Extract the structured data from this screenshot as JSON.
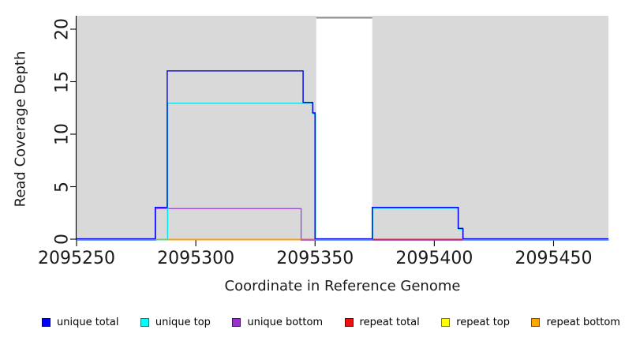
{
  "figure": {
    "background": "#ffffff",
    "plot_background": "#d9d9d9",
    "axis_color": "#000000",
    "gap_cap_color": "#8f8f8f"
  },
  "chart_data": {
    "type": "line",
    "title": "",
    "xlabel": "Coordinate in Reference Genome",
    "ylabel": "Read Coverage Depth",
    "xlim": [
      2095250,
      2095473
    ],
    "ylim": [
      0,
      21
    ],
    "grid": false,
    "legend_position": "bottom",
    "xticks": [
      {
        "value": 2095250,
        "label": "2095250"
      },
      {
        "value": 2095300,
        "label": "2095300"
      },
      {
        "value": 2095350,
        "label": "2095350"
      },
      {
        "value": 2095400,
        "label": "2095400"
      },
      {
        "value": 2095450,
        "label": "2095450"
      }
    ],
    "yticks": [
      {
        "value": 0,
        "label": "0"
      },
      {
        "value": 5,
        "label": "5"
      },
      {
        "value": 10,
        "label": "10"
      },
      {
        "value": 15,
        "label": "15"
      },
      {
        "value": 20,
        "label": "20"
      }
    ],
    "n_gap": {
      "from": 2095350.5,
      "to": 2095374,
      "cap_value": 21.1
    },
    "series": [
      {
        "name": "unique total",
        "color": "#0000ee",
        "points": [
          [
            2095250,
            0
          ],
          [
            2095283,
            0
          ],
          [
            2095283,
            3
          ],
          [
            2095288,
            3
          ],
          [
            2095288,
            16
          ],
          [
            2095345,
            16
          ],
          [
            2095345,
            13
          ],
          [
            2095349,
            13
          ],
          [
            2095349,
            12
          ],
          [
            2095350,
            12
          ],
          [
            2095350,
            0
          ],
          [
            2095374,
            0
          ],
          [
            2095374,
            3
          ],
          [
            2095410,
            3
          ],
          [
            2095410,
            1
          ],
          [
            2095412,
            1
          ],
          [
            2095412,
            0
          ],
          [
            2095473,
            0
          ]
        ]
      },
      {
        "name": "unique top",
        "color": "#00e5ee",
        "points": [
          [
            2095250,
            0
          ],
          [
            2095288,
            0
          ],
          [
            2095288,
            13
          ],
          [
            2095349,
            13
          ],
          [
            2095349,
            12
          ],
          [
            2095350,
            12
          ],
          [
            2095350,
            0
          ],
          [
            2095374,
            0
          ],
          [
            2095374,
            3
          ],
          [
            2095410,
            3
          ],
          [
            2095410,
            1
          ],
          [
            2095412,
            1
          ],
          [
            2095412,
            0
          ],
          [
            2095473,
            0
          ]
        ]
      },
      {
        "name": "unique bottom",
        "color": "#9b4fd6",
        "points": [
          [
            2095250,
            0
          ],
          [
            2095283,
            0
          ],
          [
            2095283,
            3
          ],
          [
            2095344,
            3
          ],
          [
            2095344,
            0
          ],
          [
            2095473,
            0
          ]
        ]
      },
      {
        "name": "repeat total",
        "color": "#dc2840",
        "points": [
          [
            2095250,
            0
          ],
          [
            2095473,
            0
          ]
        ]
      },
      {
        "name": "repeat top",
        "color": "#ffff00",
        "points": [
          [
            2095250,
            0
          ],
          [
            2095473,
            0
          ]
        ]
      },
      {
        "name": "repeat bottom",
        "color": "#ff9f00",
        "points": [
          [
            2095250,
            0
          ],
          [
            2095473,
            0
          ]
        ]
      }
    ],
    "baseline_overlays": [
      {
        "color": "#79c879",
        "from": 2095284,
        "to": 2095288
      },
      {
        "color": "#ff9f00",
        "from": 2095288,
        "to": 2095344
      },
      {
        "color": "#e05a78",
        "from": 2095344,
        "to": 2095350
      },
      {
        "color": "#dc2840",
        "from": 2095374,
        "to": 2095412
      }
    ]
  },
  "legend": {
    "items": [
      {
        "label": "unique total",
        "fill": "#0000ff",
        "border": "#000080"
      },
      {
        "label": "unique top",
        "fill": "#00ffff",
        "border": "#008080"
      },
      {
        "label": "unique bottom",
        "fill": "#9932cc",
        "border": "#4b0f66"
      },
      {
        "label": "repeat total",
        "fill": "#ee1111",
        "border": "#700000"
      },
      {
        "label": "repeat top",
        "fill": "#ffff00",
        "border": "#808000"
      },
      {
        "label": "repeat bottom",
        "fill": "#ffa500",
        "border": "#805200"
      }
    ]
  }
}
